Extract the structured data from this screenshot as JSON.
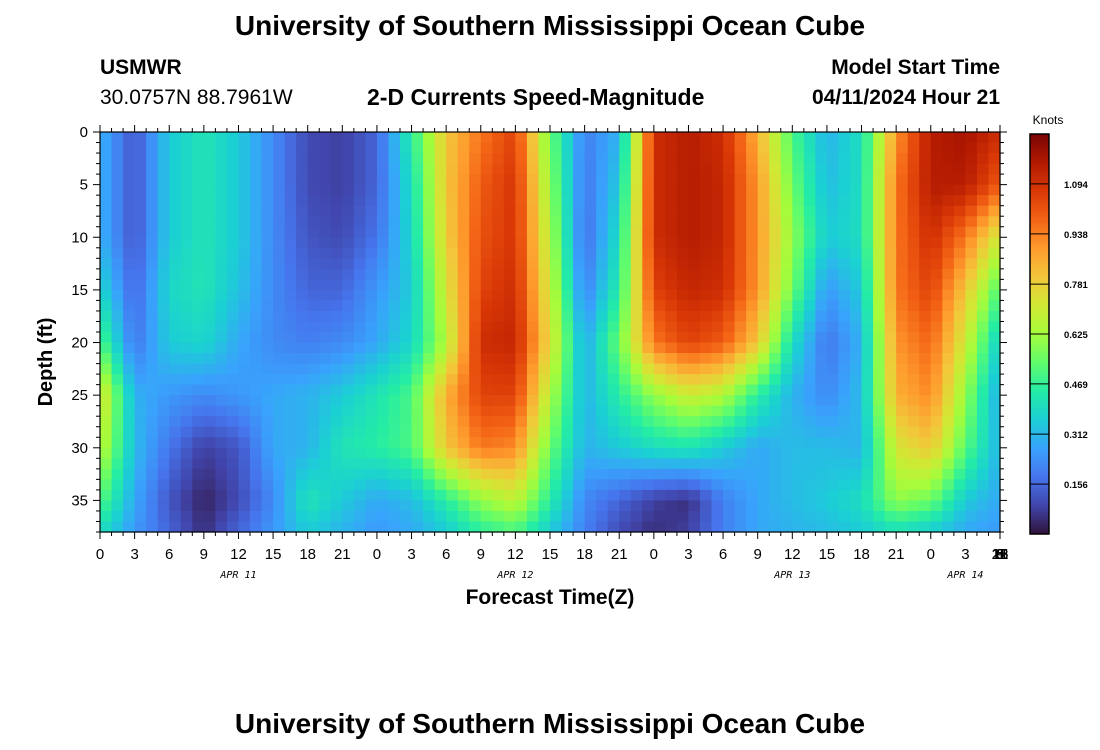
{
  "header": {
    "title": "University of Southern Mississippi Ocean Cube",
    "station": "USMWR",
    "coords": "30.0757N  88.7961W",
    "chart_title": "2-D Currents Speed-Magnitude",
    "start_label": "Model Start Time",
    "start_value": "04/11/2024 Hour 21"
  },
  "footer": {
    "title": "University of Southern Mississippi Ocean Cube"
  },
  "chart_data": {
    "type": "heatmap",
    "title": "2-D Currents Speed-Magnitude",
    "xlabel": "Forecast Time(Z)",
    "ylabel": "Depth (ft)",
    "colorbar_label": "Knots",
    "x_tick_labels": [
      "0",
      "3",
      "6",
      "9",
      "12",
      "15",
      "18",
      "21",
      "0",
      "3",
      "6",
      "9",
      "12",
      "15",
      "18",
      "21",
      "0",
      "3",
      "6",
      "9",
      "12",
      "15",
      "18",
      "21",
      "0",
      "3",
      "6",
      "9",
      "12",
      "15",
      "18",
      "21",
      "0",
      "3",
      "6"
    ],
    "x_date_labels": [
      {
        "label": "APR 11",
        "hour": 12
      },
      {
        "label": "APR 12",
        "hour": 36
      },
      {
        "label": "APR 13",
        "hour": 60
      },
      {
        "label": "APR 14",
        "hour": 75
      }
    ],
    "x_range_hours": [
      0,
      78
    ],
    "y_ticks": [
      0,
      5,
      10,
      15,
      20,
      25,
      30,
      35
    ],
    "y_range_ft": [
      0,
      38
    ],
    "y_inverted": true,
    "colorbar_ticks": [
      "1.094",
      "0.938",
      "0.781",
      "0.625",
      "0.469",
      "0.312",
      "0.156"
    ],
    "colorbar_range": [
      0,
      1.25
    ],
    "colormap": [
      "#30123b",
      "#4145ab",
      "#4675ed",
      "#39a2fc",
      "#1bcfd4",
      "#24eca6",
      "#61fc6c",
      "#a4fc3b",
      "#d1e834",
      "#f3c63a",
      "#fe9b2d",
      "#f36315",
      "#d93806",
      "#b11901",
      "#7a0402"
    ],
    "grid": false,
    "legend": "colorbar right",
    "speed_knots": {
      "depth_levels_ft": [
        0,
        5,
        10,
        15,
        20,
        25,
        30,
        35,
        38
      ],
      "hours": [
        0,
        3,
        6,
        9,
        12,
        15,
        18,
        21,
        24,
        27,
        30,
        33,
        36,
        39,
        42,
        45,
        48,
        51,
        54,
        57,
        60,
        63,
        66,
        69,
        72,
        75,
        78
      ],
      "rows": [
        [
          0.3,
          0.12,
          0.35,
          0.42,
          0.35,
          0.22,
          0.1,
          0.08,
          0.15,
          0.45,
          0.8,
          0.95,
          1.05,
          0.55,
          0.2,
          0.3,
          1.1,
          1.15,
          1.1,
          0.85,
          0.5,
          0.3,
          0.4,
          0.9,
          1.15,
          1.18,
          1.1
        ],
        [
          0.3,
          0.12,
          0.35,
          0.42,
          0.35,
          0.22,
          0.1,
          0.08,
          0.15,
          0.4,
          0.8,
          1.0,
          1.08,
          0.6,
          0.18,
          0.35,
          1.1,
          1.15,
          1.12,
          0.9,
          0.55,
          0.32,
          0.4,
          0.95,
          1.15,
          1.15,
          1.0
        ],
        [
          0.3,
          0.12,
          0.35,
          0.42,
          0.35,
          0.22,
          0.12,
          0.1,
          0.18,
          0.38,
          0.78,
          1.02,
          1.08,
          0.65,
          0.16,
          0.4,
          1.1,
          1.15,
          1.12,
          0.9,
          0.6,
          0.35,
          0.4,
          0.95,
          1.1,
          0.95,
          0.7
        ],
        [
          0.38,
          0.15,
          0.38,
          0.42,
          0.33,
          0.22,
          0.15,
          0.15,
          0.25,
          0.35,
          0.72,
          1.05,
          1.1,
          0.7,
          0.2,
          0.45,
          1.05,
          1.12,
          1.1,
          0.9,
          0.55,
          0.25,
          0.35,
          0.95,
          1.05,
          0.8,
          0.5
        ],
        [
          0.52,
          0.18,
          0.35,
          0.38,
          0.28,
          0.22,
          0.2,
          0.22,
          0.28,
          0.38,
          0.65,
          1.1,
          1.12,
          0.75,
          0.28,
          0.55,
          0.95,
          1.05,
          1.0,
          0.8,
          0.4,
          0.18,
          0.3,
          0.9,
          0.98,
          0.7,
          0.35
        ],
        [
          0.75,
          0.3,
          0.25,
          0.22,
          0.25,
          0.28,
          0.3,
          0.35,
          0.42,
          0.5,
          0.85,
          1.05,
          1.05,
          0.65,
          0.3,
          0.45,
          0.6,
          0.7,
          0.65,
          0.45,
          0.3,
          0.22,
          0.32,
          0.85,
          0.92,
          0.6,
          0.28
        ],
        [
          0.68,
          0.32,
          0.18,
          0.08,
          0.12,
          0.28,
          0.3,
          0.42,
          0.45,
          0.5,
          0.8,
          0.95,
          0.92,
          0.55,
          0.3,
          0.35,
          0.4,
          0.42,
          0.35,
          0.28,
          0.32,
          0.32,
          0.3,
          0.72,
          0.8,
          0.52,
          0.3
        ],
        [
          0.52,
          0.28,
          0.12,
          0.03,
          0.1,
          0.22,
          0.42,
          0.35,
          0.28,
          0.32,
          0.45,
          0.6,
          0.68,
          0.45,
          0.22,
          0.15,
          0.08,
          0.05,
          0.2,
          0.28,
          0.32,
          0.35,
          0.4,
          0.6,
          0.55,
          0.35,
          0.28
        ],
        [
          0.4,
          0.25,
          0.15,
          0.05,
          0.15,
          0.25,
          0.35,
          0.3,
          0.25,
          0.28,
          0.35,
          0.45,
          0.5,
          0.35,
          0.2,
          0.1,
          0.05,
          0.08,
          0.2,
          0.28,
          0.3,
          0.32,
          0.35,
          0.4,
          0.35,
          0.28,
          0.25
        ]
      ]
    }
  }
}
